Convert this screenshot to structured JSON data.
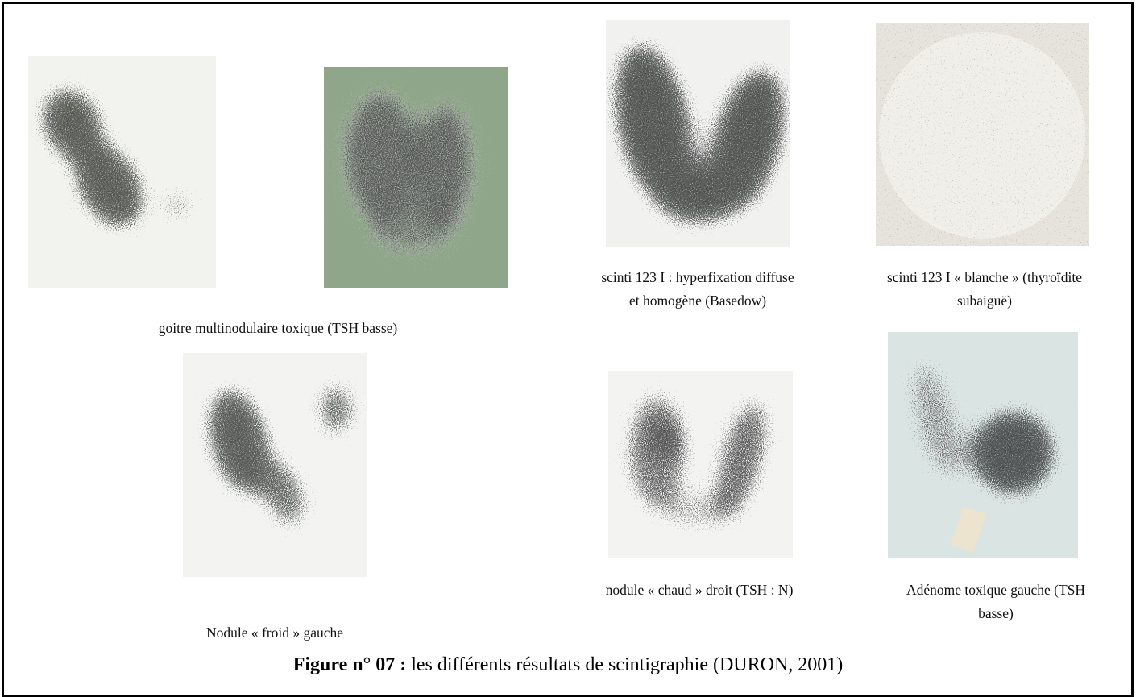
{
  "captions": {
    "goitre": [
      "goitre multinodulaire toxique (TSH basse)"
    ],
    "basedow": [
      "scinti 123 I : hyperfixation diffuse",
      "et homogène (Basedow)"
    ],
    "blanche": [
      "scinti 123 I « blanche » (thyroïdite",
      "subaiguë)"
    ],
    "froid": [
      "Nodule « froid » gauche"
    ],
    "chaud": [
      "nodule « chaud » droit (TSH : N)"
    ],
    "adenome": [
      "Adénome toxique gauche (TSH",
      "basse)"
    ]
  },
  "figure_caption": {
    "label": "Figure n° 07 :",
    "text": "les différents résultats de scintigraphie (DURON, 2001)"
  }
}
